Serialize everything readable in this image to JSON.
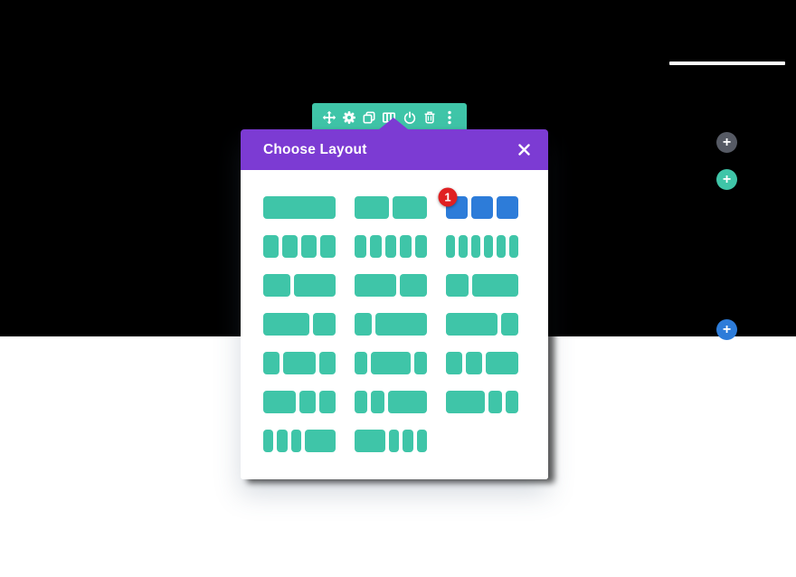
{
  "colors": {
    "teal": "#3FC5A8",
    "blue": "#2D7CD9",
    "red": "#E02022",
    "purple": "#7C3BD3",
    "grayButton": "#565A64"
  },
  "toolbar": {
    "icons": [
      {
        "name": "move-icon"
      },
      {
        "name": "settings-gear-icon"
      },
      {
        "name": "duplicate-icon"
      },
      {
        "name": "column-structure-icon"
      },
      {
        "name": "disable-power-icon"
      },
      {
        "name": "delete-trash-icon"
      },
      {
        "name": "options-menu-icon"
      }
    ]
  },
  "modal": {
    "title": "Choose Layout",
    "layouts": [
      {
        "label": "1",
        "columns": [
          1
        ]
      },
      {
        "label": "1/2 1/2",
        "columns": [
          1,
          1
        ]
      },
      {
        "label": "1/3 1/3 1/3",
        "columns": [
          1,
          1,
          1
        ],
        "selected": true,
        "badge": "1"
      },
      {
        "label": "1/4 1/4 1/4 1/4",
        "columns": [
          1,
          1,
          1,
          1
        ]
      },
      {
        "label": "1/5 1/5 1/5 1/5 1/5",
        "columns": [
          1,
          1,
          1,
          1,
          1
        ]
      },
      {
        "label": "1/6 1/6 1/6 1/6 1/6 1/6",
        "columns": [
          1,
          1,
          1,
          1,
          1,
          1
        ]
      },
      {
        "label": "2/5 3/5",
        "columns": [
          2,
          3
        ]
      },
      {
        "label": "3/5 2/5",
        "columns": [
          3,
          2
        ]
      },
      {
        "label": "1/3 2/3",
        "columns": [
          1,
          2
        ]
      },
      {
        "label": "2/3 1/3",
        "columns": [
          2,
          1
        ]
      },
      {
        "label": "1/4 3/4",
        "columns": [
          1,
          3
        ]
      },
      {
        "label": "3/4 1/4",
        "columns": [
          3,
          1
        ]
      },
      {
        "label": "1/4 1/2 1/4",
        "columns": [
          1,
          2,
          1
        ]
      },
      {
        "label": "1/5 3/5 1/5",
        "columns": [
          1,
          3,
          1
        ]
      },
      {
        "label": "1/4 1/4 1/2",
        "columns": [
          1,
          1,
          2
        ]
      },
      {
        "label": "1/2 1/4 1/4",
        "columns": [
          2,
          1,
          1
        ]
      },
      {
        "label": "1/5 1/5 3/5",
        "columns": [
          1,
          1,
          3
        ]
      },
      {
        "label": "3/5 1/5 1/5",
        "columns": [
          3,
          1,
          1
        ]
      },
      {
        "label": "1/6 1/6 1/6 1/2",
        "columns": [
          1,
          1,
          1,
          3
        ]
      },
      {
        "label": "1/2 1/6 1/6 1/6",
        "columns": [
          3,
          1,
          1,
          1
        ]
      }
    ]
  },
  "side_buttons": [
    {
      "name": "add-button-gray",
      "glyph": "+"
    },
    {
      "name": "add-button-teal",
      "glyph": "+"
    },
    {
      "name": "add-button-blue",
      "glyph": "+"
    }
  ]
}
